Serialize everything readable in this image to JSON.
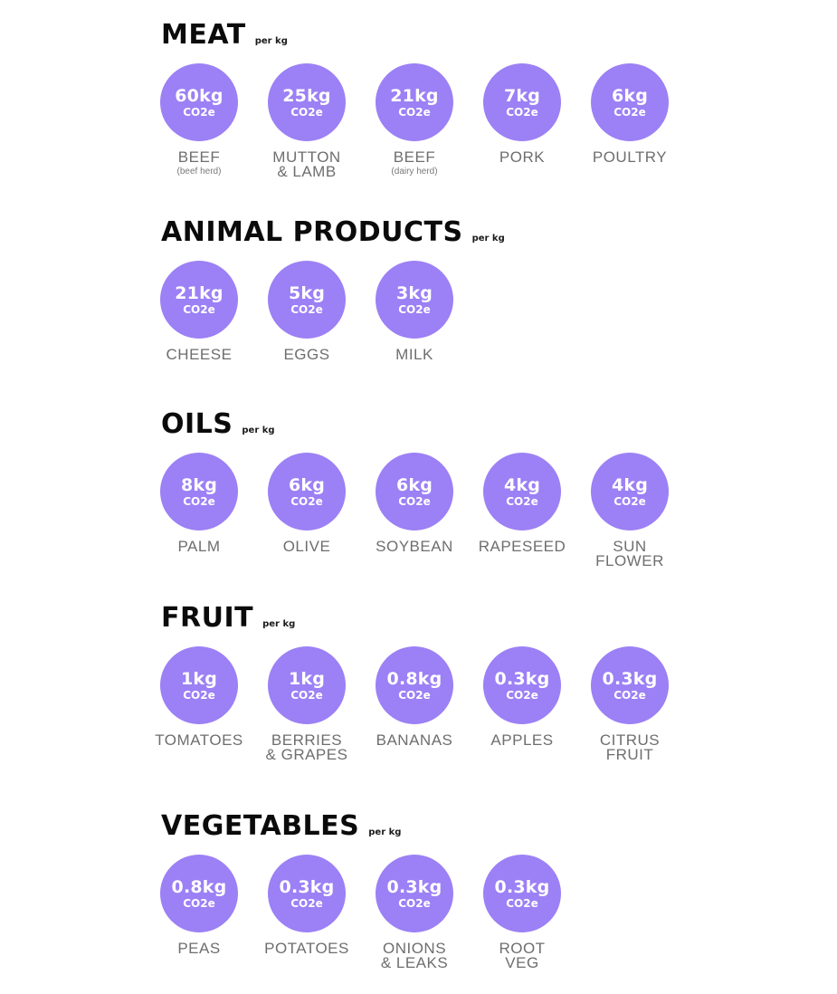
{
  "colors": {
    "circle": "#9c80f5",
    "title": "#0b0b0b",
    "label": "#6e6e6e",
    "circle_text": "#ffffff"
  },
  "sections": [
    {
      "title": "MEAT",
      "unit": "per kg",
      "items": [
        {
          "value": "60kg",
          "unit": "CO2e",
          "label": "BEEF",
          "sublabel": "(beef herd)"
        },
        {
          "value": "25kg",
          "unit": "CO2e",
          "label": "MUTTON\n& LAMB",
          "sublabel": ""
        },
        {
          "value": "21kg",
          "unit": "CO2e",
          "label": "BEEF",
          "sublabel": "(dairy herd)"
        },
        {
          "value": "7kg",
          "unit": "CO2e",
          "label": "PORK",
          "sublabel": ""
        },
        {
          "value": "6kg",
          "unit": "CO2e",
          "label": "POULTRY",
          "sublabel": ""
        }
      ]
    },
    {
      "title": "ANIMAL PRODUCTS",
      "unit": "per kg",
      "items": [
        {
          "value": "21kg",
          "unit": "CO2e",
          "label": "CHEESE",
          "sublabel": ""
        },
        {
          "value": "5kg",
          "unit": "CO2e",
          "label": "EGGS",
          "sublabel": ""
        },
        {
          "value": "3kg",
          "unit": "CO2e",
          "label": "MILK",
          "sublabel": ""
        }
      ]
    },
    {
      "title": "OILS",
      "unit": "per kg",
      "items": [
        {
          "value": "8kg",
          "unit": "CO2e",
          "label": "PALM",
          "sublabel": ""
        },
        {
          "value": "6kg",
          "unit": "CO2e",
          "label": "OLIVE",
          "sublabel": ""
        },
        {
          "value": "6kg",
          "unit": "CO2e",
          "label": "SOYBEAN",
          "sublabel": ""
        },
        {
          "value": "4kg",
          "unit": "CO2e",
          "label": "RAPESEED",
          "sublabel": ""
        },
        {
          "value": "4kg",
          "unit": "CO2e",
          "label": "SUN\nFLOWER",
          "sublabel": ""
        }
      ]
    },
    {
      "title": "FRUIT",
      "unit": "per kg",
      "items": [
        {
          "value": "1kg",
          "unit": "CO2e",
          "label": "TOMATOES",
          "sublabel": ""
        },
        {
          "value": "1kg",
          "unit": "CO2e",
          "label": "BERRIES\n& GRAPES",
          "sublabel": ""
        },
        {
          "value": "0.8kg",
          "unit": "CO2e",
          "label": "BANANAS",
          "sublabel": ""
        },
        {
          "value": "0.3kg",
          "unit": "CO2e",
          "label": "APPLES",
          "sublabel": ""
        },
        {
          "value": "0.3kg",
          "unit": "CO2e",
          "label": "CITRUS\nFRUIT",
          "sublabel": ""
        }
      ]
    },
    {
      "title": "VEGETABLES",
      "unit": "per kg",
      "items": [
        {
          "value": "0.8kg",
          "unit": "CO2e",
          "label": "PEAS",
          "sublabel": ""
        },
        {
          "value": "0.3kg",
          "unit": "CO2e",
          "label": "POTATOES",
          "sublabel": ""
        },
        {
          "value": "0.3kg",
          "unit": "CO2e",
          "label": "ONIONS\n& LEAKS",
          "sublabel": ""
        },
        {
          "value": "0.3kg",
          "unit": "CO2e",
          "label": "ROOT\nVEG",
          "sublabel": ""
        }
      ]
    }
  ],
  "chart_data": {
    "type": "table",
    "title": "Greenhouse gas emissions per kg of food (kg CO2e)",
    "unit": "kg CO2e per kg",
    "groups": [
      {
        "name": "MEAT",
        "categories": [
          "Beef (beef herd)",
          "Mutton & Lamb",
          "Beef (dairy herd)",
          "Pork",
          "Poultry"
        ],
        "values": [
          60,
          25,
          21,
          7,
          6
        ]
      },
      {
        "name": "ANIMAL PRODUCTS",
        "categories": [
          "Cheese",
          "Eggs",
          "Milk"
        ],
        "values": [
          21,
          5,
          3
        ]
      },
      {
        "name": "OILS",
        "categories": [
          "Palm",
          "Olive",
          "Soybean",
          "Rapeseed",
          "Sunflower"
        ],
        "values": [
          8,
          6,
          6,
          4,
          4
        ]
      },
      {
        "name": "FRUIT",
        "categories": [
          "Tomatoes",
          "Berries & Grapes",
          "Bananas",
          "Apples",
          "Citrus Fruit"
        ],
        "values": [
          1,
          1,
          0.8,
          0.3,
          0.3
        ]
      },
      {
        "name": "VEGETABLES",
        "categories": [
          "Peas",
          "Potatoes",
          "Onions & Leaks",
          "Root Veg"
        ],
        "values": [
          0.8,
          0.3,
          0.3,
          0.3
        ]
      }
    ]
  }
}
